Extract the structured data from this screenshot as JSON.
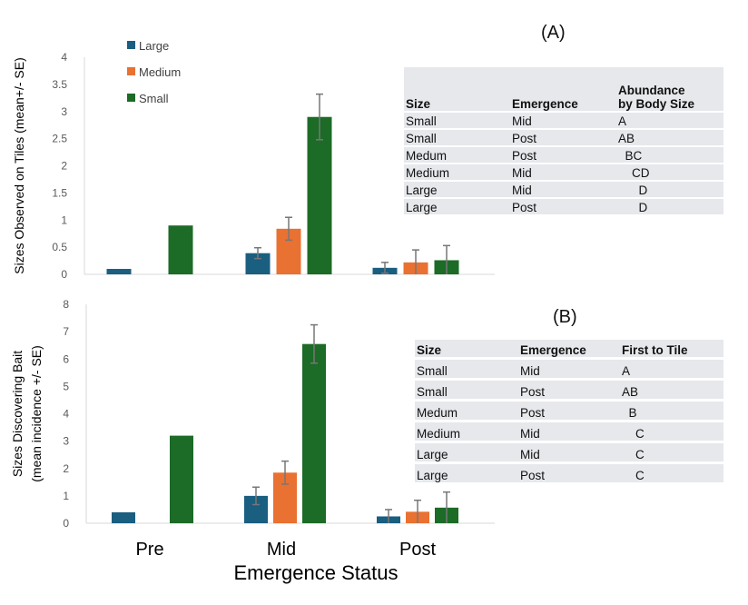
{
  "panel_a_label": "(A)",
  "panel_b_label": "(B)",
  "chart_data": [
    {
      "type": "bar",
      "ylabel": "Sizes Observed on Tiles (mean+/- SE)",
      "ylim": [
        0,
        4
      ],
      "yticks": [
        "0",
        "0.5",
        "1",
        "1.5",
        "2",
        "2.5",
        "3",
        "3.5",
        "4"
      ],
      "categories": [
        "Pre",
        "Mid",
        "Post"
      ],
      "series": [
        {
          "name": "Large",
          "color": "#1a5e80",
          "values": [
            0.1,
            0.39,
            0.12
          ],
          "se": [
            null,
            0.1,
            0.1
          ]
        },
        {
          "name": "Medium",
          "color": "#e97132",
          "values": [
            null,
            0.84,
            0.22
          ],
          "se": [
            null,
            0.21,
            0.23
          ]
        },
        {
          "name": "Small",
          "color": "#1c6b27",
          "values": [
            0.9,
            2.9,
            0.26
          ],
          "se": [
            null,
            0.42,
            0.27
          ]
        }
      ],
      "legend": "top-left"
    },
    {
      "type": "bar",
      "ylabel": "Sizes Discovering Bait",
      "ylabel2": "(mean incidence +/- SE)",
      "xlabel": "Emergence Status",
      "ylim": [
        0,
        8
      ],
      "yticks": [
        "0",
        "1",
        "2",
        "3",
        "4",
        "5",
        "6",
        "7",
        "8"
      ],
      "categories": [
        "Pre",
        "Mid",
        "Post"
      ],
      "series": [
        {
          "name": "Large",
          "color": "#1a5e80",
          "values": [
            0.4,
            1.0,
            0.25
          ],
          "se": [
            null,
            0.32,
            0.25
          ]
        },
        {
          "name": "Medium",
          "color": "#e97132",
          "values": [
            null,
            1.85,
            0.42
          ],
          "se": [
            null,
            0.42,
            0.42
          ]
        },
        {
          "name": "Small",
          "color": "#1c6b27",
          "values": [
            3.2,
            6.55,
            0.57
          ],
          "se": [
            null,
            0.7,
            0.57
          ]
        }
      ]
    }
  ],
  "table_a": {
    "headers": [
      "Size",
      "Emergence",
      "Abundance",
      "by Body Size"
    ],
    "rows": [
      [
        "Small",
        "Mid",
        "A"
      ],
      [
        "Small",
        "Post",
        "AB"
      ],
      [
        "Medum",
        "Post",
        "  BC"
      ],
      [
        "Medium",
        "Mid",
        "    CD"
      ],
      [
        "Large",
        "Mid",
        "      D"
      ],
      [
        "Large",
        "Post",
        "      D"
      ]
    ]
  },
  "table_b": {
    "headers": [
      "Size",
      "Emergence",
      "First to Tile"
    ],
    "rows": [
      [
        "Small",
        "Mid",
        "A"
      ],
      [
        "Small",
        "Post",
        "AB"
      ],
      [
        "Medum",
        "Post",
        "  B"
      ],
      [
        "Medium",
        "Mid",
        "    C"
      ],
      [
        "Large",
        "Mid",
        "    C"
      ],
      [
        "Large",
        "Post",
        "    C"
      ]
    ]
  }
}
